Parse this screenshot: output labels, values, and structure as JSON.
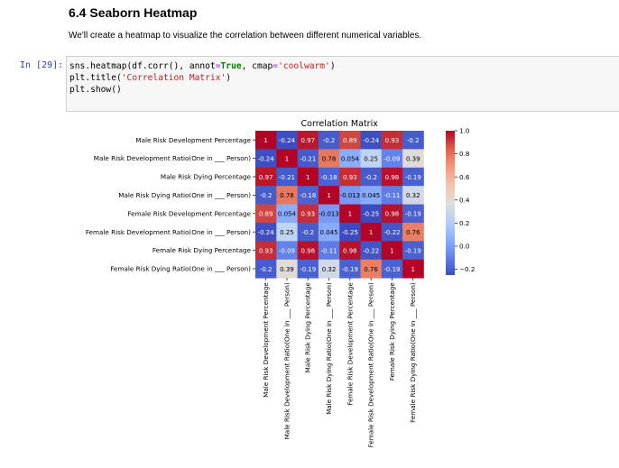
{
  "section": {
    "title": "6.4 Seaborn Heatmap",
    "description": "We'll create a heatmap to visualize the correlation between different numerical variables."
  },
  "cell": {
    "prompt": "In [29]:",
    "code": {
      "line1": [
        "sns.heatmap(df.corr(), annot",
        "=",
        "True",
        ", cmap",
        "=",
        "'coolwarm'",
        ")"
      ],
      "line2": [
        "plt.title(",
        "'Correlation Matrix'",
        ")"
      ],
      "line3": [
        "plt.show()"
      ]
    }
  },
  "chart_data": {
    "type": "heatmap",
    "title": "Correlation Matrix",
    "labels": [
      "Male Risk Development Percentage",
      "Male Risk Development Ratio(One in ___ Person)",
      "Male Risk Dying Percentage",
      "Male Risk Dying Ratio(One in ___ Person)",
      "Female Risk Development Percentage",
      "Female Risk Development Ratio(One in ___ Person)",
      "Female Risk Dying Percentage",
      "Female Risk Dying Ratio(One in ___ Person)"
    ],
    "values": [
      [
        1,
        -0.24,
        0.97,
        -0.2,
        0.89,
        -0.24,
        0.93,
        -0.2
      ],
      [
        -0.24,
        1,
        -0.21,
        0.78,
        0.054,
        0.25,
        -0.09,
        0.39
      ],
      [
        0.97,
        -0.21,
        1,
        -0.18,
        0.93,
        -0.2,
        0.98,
        -0.19
      ],
      [
        -0.2,
        0.78,
        -0.18,
        1,
        -0.013,
        0.045,
        -0.11,
        0.32
      ],
      [
        0.89,
        0.054,
        0.93,
        -0.013,
        1,
        -0.25,
        0.98,
        -0.19
      ],
      [
        -0.24,
        0.25,
        -0.2,
        0.045,
        -0.25,
        1,
        -0.22,
        0.76
      ],
      [
        0.93,
        -0.09,
        0.98,
        -0.11,
        0.98,
        -0.22,
        1,
        -0.19
      ],
      [
        -0.2,
        0.39,
        -0.19,
        0.32,
        -0.19,
        0.76,
        -0.19,
        1
      ]
    ],
    "colormap": "coolwarm",
    "colorbar": {
      "ticks": [
        "1.0",
        "0.8",
        "0.6",
        "0.4",
        "0.2",
        "0.0",
        "−0.2"
      ],
      "range": [
        -0.25,
        1.0
      ]
    },
    "annot": true
  }
}
